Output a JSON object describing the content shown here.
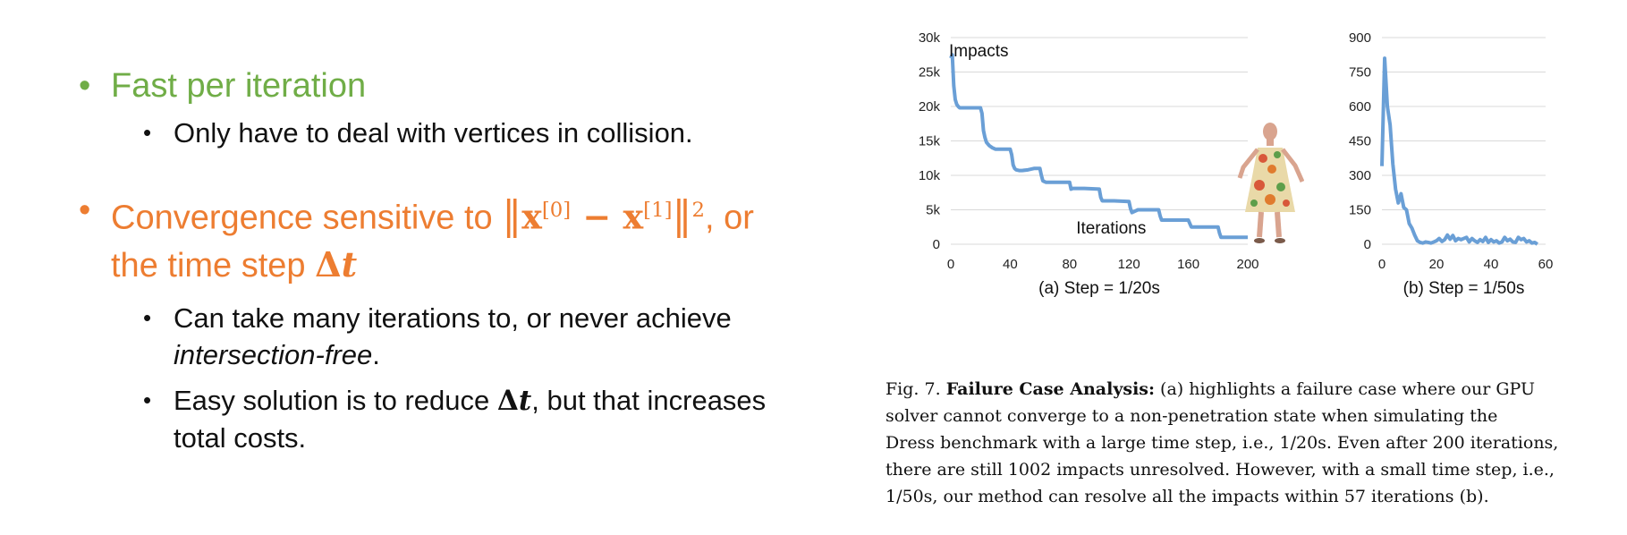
{
  "slide": {
    "b1": {
      "bullet": "•",
      "text": "Fast per iteration"
    },
    "b1s1": {
      "bullet": "•",
      "text": "Only have to deal with vertices in collision."
    },
    "b2": {
      "bullet": "•",
      "pre": "Convergence sensitive to ",
      "norm_open": "‖",
      "x0_base": "x",
      "x0_sup": "[0]",
      "minus": " − ",
      "x1_base": "x",
      "x1_sup": "[1]",
      "norm_close": "‖",
      "sq": "2",
      "mid": ", or",
      "line2_pre": "the time step ",
      "dt": "Δ",
      "dt_t": "t"
    },
    "b2s1": {
      "bullet": "•",
      "line1": "Can take many iterations to, or never achieve",
      "italic": "intersection-free",
      "tail": "."
    },
    "b2s2": {
      "bullet": "•",
      "pre": "Easy solution is to reduce ",
      "dt": "Δ",
      "dt_t": "t",
      "post": ", but that increases",
      "line2": "total costs."
    }
  },
  "chart_data": [
    {
      "type": "line",
      "title": "(a) Step = 1/20s",
      "ylabel": "Impacts",
      "xlabel": "Iterations",
      "xlim": [
        0,
        200
      ],
      "ylim": [
        0,
        30000
      ],
      "xticks": [
        0,
        40,
        80,
        120,
        160,
        200
      ],
      "yticks": [
        0,
        5000,
        10000,
        15000,
        20000,
        25000,
        30000
      ],
      "ytick_labels": [
        "0",
        "5k",
        "10k",
        "15k",
        "20k",
        "25k",
        "30k"
      ],
      "grid": true,
      "color": "#6a9fd6",
      "x": [
        0,
        1,
        2,
        3,
        4,
        5,
        6,
        8,
        10,
        20,
        21,
        22,
        23,
        24,
        26,
        28,
        30,
        32,
        40,
        41,
        42,
        43,
        44,
        46,
        48,
        52,
        56,
        58,
        60,
        61,
        62,
        64,
        66,
        70,
        80,
        81,
        82,
        84,
        86,
        90,
        100,
        101,
        102,
        104,
        106,
        110,
        120,
        121,
        122,
        124,
        126,
        130,
        140,
        141,
        142,
        144,
        146,
        150,
        160,
        161,
        162,
        164,
        166,
        170,
        180,
        181,
        182,
        184,
        186,
        190,
        200
      ],
      "y": [
        27000,
        27500,
        23000,
        21000,
        20300,
        20000,
        19800,
        19800,
        19800,
        19800,
        19000,
        16500,
        15500,
        14800,
        14300,
        14000,
        13800,
        13800,
        13800,
        13000,
        11500,
        11000,
        10800,
        10700,
        10700,
        10800,
        11000,
        11000,
        11000,
        10000,
        9200,
        9000,
        9000,
        9000,
        9000,
        8000,
        8100,
        8100,
        8100,
        8100,
        8000,
        6800,
        6300,
        6300,
        6300,
        6300,
        6200,
        5200,
        4600,
        4800,
        5000,
        5000,
        5000,
        4100,
        3500,
        3500,
        3500,
        3500,
        3500,
        3000,
        2500,
        2500,
        2500,
        2500,
        2500,
        1600,
        1000,
        1000,
        1000,
        1000,
        1000
      ]
    },
    {
      "type": "line",
      "title": "(b) Step = 1/50s",
      "xlim": [
        0,
        60
      ],
      "ylim": [
        0,
        900
      ],
      "xticks": [
        0,
        20,
        40,
        60
      ],
      "yticks": [
        0,
        150,
        300,
        450,
        600,
        750,
        900
      ],
      "ytick_labels": [
        "0",
        "150",
        "300",
        "450",
        "600",
        "750",
        "900"
      ],
      "grid": true,
      "color": "#6a9fd6",
      "x": [
        0,
        1,
        2,
        3,
        4,
        5,
        6,
        7,
        8,
        9,
        10,
        11,
        12,
        13,
        14,
        15,
        16,
        17,
        18,
        19,
        20,
        21,
        22,
        23,
        24,
        25,
        26,
        27,
        28,
        29,
        30,
        31,
        32,
        33,
        34,
        35,
        36,
        37,
        38,
        39,
        40,
        41,
        42,
        43,
        44,
        45,
        46,
        47,
        48,
        49,
        50,
        51,
        52,
        53,
        54,
        55,
        56,
        57
      ],
      "y": [
        340,
        810,
        600,
        520,
        350,
        240,
        180,
        220,
        160,
        150,
        90,
        70,
        40,
        15,
        8,
        5,
        10,
        8,
        5,
        10,
        15,
        25,
        12,
        20,
        40,
        22,
        38,
        15,
        25,
        20,
        25,
        30,
        10,
        25,
        15,
        8,
        20,
        12,
        30,
        8,
        20,
        10,
        15,
        5,
        10,
        30,
        15,
        22,
        10,
        8,
        30,
        20,
        25,
        10,
        15,
        5,
        8,
        0
      ]
    }
  ],
  "caption": {
    "fig": "Fig. 7.",
    "bold": "Failure Case Analysis:",
    "l1": "(a) highlights a failure case where our GPU",
    "l2": "solver cannot converge to a non-penetration state when simulating the",
    "l3": "Dress benchmark with a large time step, i.e., 1/20s. Even after 200 iterations,",
    "l4": "there are still 1002 impacts unresolved. However, with a small time step, i.e.,",
    "l5": "1/50s, our method can resolve all the impacts within 57 iterations (b)."
  }
}
